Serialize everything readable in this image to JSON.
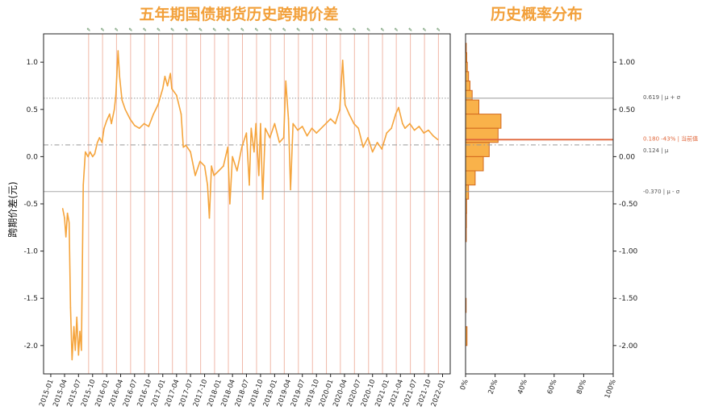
{
  "chart_data": [
    {
      "type": "line",
      "title": "五年期国债期货历史跨期价差",
      "ylabel": "跨期价差(元)",
      "xlabel": "",
      "ylim": [
        -2.3,
        1.3
      ],
      "yticks": [
        1.0,
        0.5,
        0.0,
        -0.5,
        -1.0,
        -1.5,
        -2.0
      ],
      "ytick_labels": [
        "1.0",
        "0.5",
        "0.0",
        "-0.5",
        "-1.0",
        "-1.5",
        "-2.0"
      ],
      "xticks": [
        "2015-01",
        "2015-04",
        "2015-07",
        "2015-10",
        "2016-01",
        "2016-04",
        "2016-07",
        "2016-10",
        "2017-01",
        "2017-04",
        "2017-07",
        "2017-10",
        "2018-01",
        "2018-04",
        "2018-07",
        "2018-10",
        "2019-01",
        "2019-04",
        "2019-07",
        "2019-10",
        "2020-01",
        "2020-04",
        "2020-07",
        "2020-10",
        "2021-01",
        "2021-04",
        "2021-07",
        "2021-10",
        "2022-01"
      ],
      "roll_label": "✎",
      "roll_markers": [
        "2015-09-05",
        "2015-12-05",
        "2016-03-05",
        "2016-06-05",
        "2016-09-05",
        "2016-12-05",
        "2017-03-05",
        "2017-06-05",
        "2017-09-05",
        "2017-12-05",
        "2018-03-05",
        "2018-06-05",
        "2018-09-05",
        "2018-12-05",
        "2019-03-05",
        "2019-06-05",
        "2019-09-05",
        "2019-12-05",
        "2020-03-05",
        "2020-06-05",
        "2020-09-05",
        "2020-12-05",
        "2021-03-05",
        "2021-06-05",
        "2021-09-05",
        "2021-12-05"
      ],
      "hlines": [
        {
          "value": 0.619,
          "style": "dotted"
        },
        {
          "value": 0.124,
          "style": "dashdot"
        },
        {
          "value": -0.37,
          "style": "solid"
        }
      ],
      "series": [
        {
          "color": "#f5a43c",
          "points": [
            [
              "2015-03-20",
              -0.55
            ],
            [
              "2015-04-01",
              -0.65
            ],
            [
              "2015-04-10",
              -0.85
            ],
            [
              "2015-04-20",
              -0.6
            ],
            [
              "2015-05-01",
              -0.7
            ],
            [
              "2015-05-10",
              -1.6
            ],
            [
              "2015-05-20",
              -2.15
            ],
            [
              "2015-06-01",
              -1.8
            ],
            [
              "2015-06-10",
              -2.05
            ],
            [
              "2015-06-20",
              -1.7
            ],
            [
              "2015-07-01",
              -2.1
            ],
            [
              "2015-07-10",
              -1.85
            ],
            [
              "2015-07-20",
              -2.05
            ],
            [
              "2015-08-01",
              -0.3
            ],
            [
              "2015-08-15",
              0.05
            ],
            [
              "2015-09-01",
              0.0
            ],
            [
              "2015-09-15",
              0.05
            ],
            [
              "2015-10-01",
              0.0
            ],
            [
              "2015-10-15",
              0.03
            ],
            [
              "2015-11-01",
              0.15
            ],
            [
              "2015-11-15",
              0.2
            ],
            [
              "2015-12-01",
              0.15
            ],
            [
              "2015-12-15",
              0.3
            ],
            [
              "2016-01-01",
              0.38
            ],
            [
              "2016-01-20",
              0.45
            ],
            [
              "2016-02-01",
              0.35
            ],
            [
              "2016-02-20",
              0.5
            ],
            [
              "2016-03-01",
              0.65
            ],
            [
              "2016-03-15",
              1.12
            ],
            [
              "2016-03-25",
              0.85
            ],
            [
              "2016-04-10",
              0.6
            ],
            [
              "2016-05-01",
              0.5
            ],
            [
              "2016-06-01",
              0.4
            ],
            [
              "2016-07-01",
              0.33
            ],
            [
              "2016-08-01",
              0.3
            ],
            [
              "2016-09-01",
              0.35
            ],
            [
              "2016-10-01",
              0.32
            ],
            [
              "2016-11-01",
              0.45
            ],
            [
              "2016-12-01",
              0.55
            ],
            [
              "2017-01-01",
              0.72
            ],
            [
              "2017-01-15",
              0.85
            ],
            [
              "2017-02-01",
              0.75
            ],
            [
              "2017-02-20",
              0.88
            ],
            [
              "2017-03-01",
              0.72
            ],
            [
              "2017-04-01",
              0.65
            ],
            [
              "2017-05-01",
              0.45
            ],
            [
              "2017-05-15",
              0.1
            ],
            [
              "2017-06-01",
              0.12
            ],
            [
              "2017-07-01",
              0.05
            ],
            [
              "2017-08-01",
              -0.2
            ],
            [
              "2017-09-01",
              -0.05
            ],
            [
              "2017-10-01",
              -0.1
            ],
            [
              "2017-10-20",
              -0.3
            ],
            [
              "2017-11-01",
              -0.65
            ],
            [
              "2017-11-15",
              -0.1
            ],
            [
              "2017-12-01",
              -0.2
            ],
            [
              "2018-01-01",
              -0.15
            ],
            [
              "2018-02-01",
              -0.1
            ],
            [
              "2018-03-01",
              0.1
            ],
            [
              "2018-03-15",
              -0.5
            ],
            [
              "2018-04-01",
              0.0
            ],
            [
              "2018-05-01",
              -0.15
            ],
            [
              "2018-06-01",
              0.1
            ],
            [
              "2018-07-01",
              0.25
            ],
            [
              "2018-07-20",
              -0.3
            ],
            [
              "2018-08-01",
              0.3
            ],
            [
              "2018-08-20",
              0.05
            ],
            [
              "2018-09-01",
              0.35
            ],
            [
              "2018-09-20",
              -0.2
            ],
            [
              "2018-10-01",
              0.35
            ],
            [
              "2018-10-15",
              -0.45
            ],
            [
              "2018-11-01",
              0.3
            ],
            [
              "2018-12-01",
              0.2
            ],
            [
              "2019-01-01",
              0.35
            ],
            [
              "2019-02-01",
              0.15
            ],
            [
              "2019-03-01",
              0.2
            ],
            [
              "2019-03-15",
              0.8
            ],
            [
              "2019-04-01",
              0.4
            ],
            [
              "2019-04-15",
              -0.35
            ],
            [
              "2019-05-01",
              0.35
            ],
            [
              "2019-06-01",
              0.28
            ],
            [
              "2019-07-01",
              0.32
            ],
            [
              "2019-08-01",
              0.22
            ],
            [
              "2019-09-01",
              0.3
            ],
            [
              "2019-10-01",
              0.25
            ],
            [
              "2019-11-01",
              0.3
            ],
            [
              "2019-12-01",
              0.35
            ],
            [
              "2020-01-01",
              0.4
            ],
            [
              "2020-02-01",
              0.35
            ],
            [
              "2020-03-01",
              0.5
            ],
            [
              "2020-03-20",
              1.02
            ],
            [
              "2020-04-05",
              0.55
            ],
            [
              "2020-05-01",
              0.45
            ],
            [
              "2020-06-01",
              0.35
            ],
            [
              "2020-07-01",
              0.3
            ],
            [
              "2020-08-01",
              0.1
            ],
            [
              "2020-09-01",
              0.2
            ],
            [
              "2020-10-01",
              0.05
            ],
            [
              "2020-11-01",
              0.15
            ],
            [
              "2020-12-01",
              0.08
            ],
            [
              "2021-01-01",
              0.25
            ],
            [
              "2021-02-01",
              0.3
            ],
            [
              "2021-03-01",
              0.45
            ],
            [
              "2021-03-20",
              0.52
            ],
            [
              "2021-04-15",
              0.35
            ],
            [
              "2021-05-01",
              0.3
            ],
            [
              "2021-06-01",
              0.35
            ],
            [
              "2021-07-01",
              0.28
            ],
            [
              "2021-08-01",
              0.32
            ],
            [
              "2021-09-01",
              0.25
            ],
            [
              "2021-10-01",
              0.28
            ],
            [
              "2021-11-01",
              0.22
            ],
            [
              "2021-12-01",
              0.18
            ]
          ]
        }
      ]
    },
    {
      "type": "bar",
      "orientation": "horizontal",
      "title": "历史概率分布",
      "ylim": [
        -2.3,
        1.3
      ],
      "yticks": [
        1.0,
        0.5,
        0.0,
        -0.5,
        -1.0,
        -1.5,
        -2.0
      ],
      "ytick_labels": [
        "1.00",
        "0.50",
        "0.00",
        "-0.50",
        "-1.00",
        "-1.50",
        "-2.00"
      ],
      "xlim": [
        0,
        100
      ],
      "xticks": [
        0,
        20,
        40,
        60,
        80,
        100
      ],
      "xtick_labels": [
        "0%",
        "20%",
        "40%",
        "60%",
        "80%",
        "100%"
      ],
      "bins": [
        {
          "from": 1.1,
          "to": 1.2,
          "pct": 0.5
        },
        {
          "from": 1.0,
          "to": 1.1,
          "pct": 0.8
        },
        {
          "from": 0.9,
          "to": 1.0,
          "pct": 1.2
        },
        {
          "from": 0.8,
          "to": 0.9,
          "pct": 2.0
        },
        {
          "from": 0.7,
          "to": 0.8,
          "pct": 3.0
        },
        {
          "from": 0.6,
          "to": 0.7,
          "pct": 4.5
        },
        {
          "from": 0.45,
          "to": 0.6,
          "pct": 9.0
        },
        {
          "from": 0.3,
          "to": 0.45,
          "pct": 24.0
        },
        {
          "from": 0.15,
          "to": 0.3,
          "pct": 22.0
        },
        {
          "from": 0.0,
          "to": 0.15,
          "pct": 16.0
        },
        {
          "from": -0.15,
          "to": 0.0,
          "pct": 12.0
        },
        {
          "from": -0.3,
          "to": -0.15,
          "pct": 6.5
        },
        {
          "from": -0.45,
          "to": -0.3,
          "pct": 2.0
        },
        {
          "from": -0.6,
          "to": -0.45,
          "pct": 0.7
        },
        {
          "from": -0.75,
          "to": -0.6,
          "pct": 0.6
        },
        {
          "from": -0.9,
          "to": -0.75,
          "pct": 0.5
        },
        {
          "from": -1.65,
          "to": -1.5,
          "pct": 0.4
        },
        {
          "from": -2.0,
          "to": -1.8,
          "pct": 1.0
        }
      ],
      "current": {
        "value": 0.18,
        "label": "0.180 -43% | 当前值"
      },
      "hlines": [
        {
          "value": 0.619,
          "label": "0.619 | μ + σ",
          "style": "solid"
        },
        {
          "value": 0.124,
          "label": "0.124 | μ",
          "style": "dashdot"
        },
        {
          "value": -0.37,
          "label": "-0.370 | μ - σ",
          "style": "solid"
        }
      ]
    }
  ],
  "colors": {
    "line": "#f5a43c",
    "bar_fill": "#f9b24a",
    "bar_edge": "#d2691e",
    "current": "#e0663a",
    "title": "#f2a03a",
    "roll": "#f0b8a8"
  }
}
